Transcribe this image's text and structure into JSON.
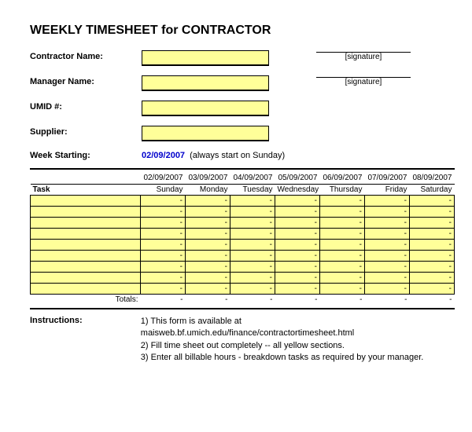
{
  "title": "WEEKLY TIMESHEET for CONTRACTOR",
  "form": {
    "contractor_label": "Contractor Name:",
    "manager_label": "Manager Name:",
    "umid_label": "UMID #:",
    "supplier_label": "Supplier:",
    "signature_label": "[signature]",
    "week_starting_label": "Week Starting:",
    "week_starting_date": "02/09/2007",
    "week_starting_hint": "(always start on Sunday)"
  },
  "colors": {
    "yellow_field": "#ffff99",
    "date_link": "#0000cc",
    "border": "#000000",
    "background": "#ffffff"
  },
  "table": {
    "task_header": "Task",
    "dates": [
      "02/09/2007",
      "03/09/2007",
      "04/09/2007",
      "05/09/2007",
      "06/09/2007",
      "07/09/2007",
      "08/09/2007"
    ],
    "days": [
      "Sunday",
      "Monday",
      "Tuesday",
      "Wednesday",
      "Thursday",
      "Friday",
      "Saturday"
    ],
    "row_count": 9,
    "cell_placeholder": "-",
    "totals_label": "Totals:",
    "totals": [
      "-",
      "-",
      "-",
      "-",
      "-",
      "-",
      "-"
    ]
  },
  "instructions": {
    "label": "Instructions:",
    "lines": [
      "1) This form is available at maisweb.bf.umich.edu/finance/contractortimesheet.html",
      "2) Fill time sheet out completely -- all yellow sections.",
      "3) Enter all billable hours - breakdown tasks as required by your manager."
    ]
  }
}
